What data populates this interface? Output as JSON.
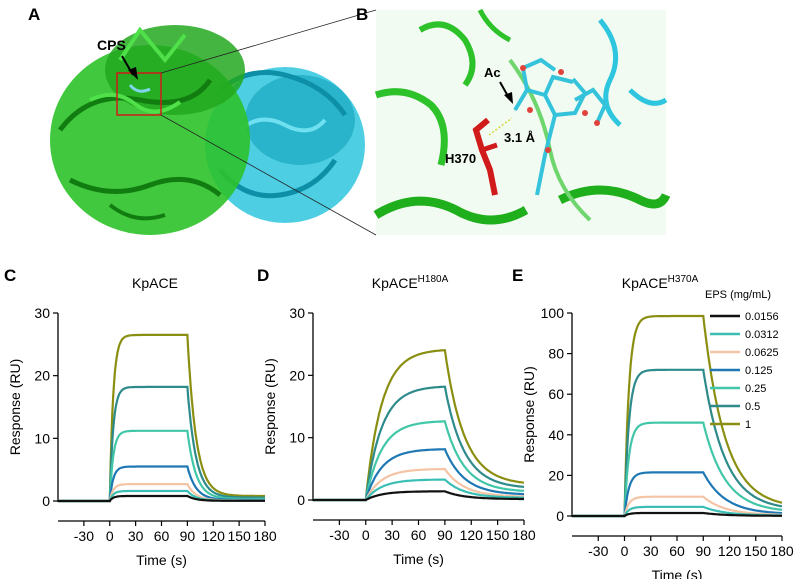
{
  "panels": {
    "A": {
      "label": "A",
      "annotation": "CPS"
    },
    "B": {
      "label": "B",
      "annotations": {
        "ac": "Ac",
        "distance": "3.1 Å",
        "residue": "H370"
      }
    }
  },
  "legend": {
    "title": "EPS (mg/mL)",
    "entries": [
      {
        "label": "0.0156",
        "color": "#111111"
      },
      {
        "label": "0.0312",
        "color": "#3bbfb5"
      },
      {
        "label": "0.0625",
        "color": "#f4c4a4"
      },
      {
        "label": "0.125",
        "color": "#1f78b4"
      },
      {
        "label": "0.25",
        "color": "#41c6a8"
      },
      {
        "label": "0.5",
        "color": "#2e8b8b"
      },
      {
        "label": "1",
        "color": "#8a8f12"
      }
    ]
  },
  "chart_data": [
    {
      "panel_label": "C",
      "type": "line",
      "title": "KpACE",
      "title_sup": "",
      "xlabel": "Time (s)",
      "ylabel": "Response (RU)",
      "xlim": [
        -60,
        180
      ],
      "ylim": [
        0,
        30
      ],
      "xticks": [
        -30,
        0,
        30,
        60,
        90,
        120,
        150,
        180
      ],
      "yticks": [
        0,
        10,
        20,
        30
      ],
      "inj_start": 0,
      "inj_end": 90,
      "tau_on": 4,
      "tau_off": 10,
      "dissoc_residual": 0.03,
      "series": [
        {
          "name": "0.0156",
          "plateau": 0.8
        },
        {
          "name": "0.0312",
          "plateau": 1.6
        },
        {
          "name": "0.0625",
          "plateau": 2.7
        },
        {
          "name": "0.125",
          "plateau": 5.5
        },
        {
          "name": "0.25",
          "plateau": 11.2
        },
        {
          "name": "0.5",
          "plateau": 18.2
        },
        {
          "name": "1",
          "plateau": 26.5
        }
      ]
    },
    {
      "panel_label": "D",
      "type": "line",
      "title": "KpACE",
      "title_sup": "H180A",
      "xlabel": "Time (s)",
      "ylabel": "Response (RU)",
      "xlim": [
        -60,
        180
      ],
      "ylim": [
        0,
        30
      ],
      "xticks": [
        -30,
        0,
        30,
        60,
        90,
        120,
        150,
        180
      ],
      "yticks": [
        0,
        10,
        20,
        30
      ],
      "inj_start": 0,
      "inj_end": 90,
      "tau_on": 18,
      "tau_off": 22,
      "dissoc_residual": 0.1,
      "series": [
        {
          "name": "0.0156",
          "plateau": 1.4
        },
        {
          "name": "0.0312",
          "plateau": 3.3
        },
        {
          "name": "0.0625",
          "plateau": 5.0
        },
        {
          "name": "0.125",
          "plateau": 8.2
        },
        {
          "name": "0.25",
          "plateau": 12.7
        },
        {
          "name": "0.5",
          "plateau": 18.3
        },
        {
          "name": "1",
          "plateau": 24.2
        }
      ]
    },
    {
      "panel_label": "E",
      "type": "line",
      "title": "KpACE",
      "title_sup": "H370A",
      "xlabel": "Time (s)",
      "ylabel": "Response (RU)",
      "xlim": [
        -60,
        180
      ],
      "ylim": [
        0,
        100
      ],
      "xticks": [
        -30,
        0,
        30,
        60,
        90,
        120,
        150,
        180
      ],
      "yticks": [
        0,
        20,
        40,
        60,
        80,
        100
      ],
      "inj_start": 0,
      "inj_end": 90,
      "tau_on": 5,
      "tau_off": 25,
      "dissoc_residual": 0.04,
      "series": [
        {
          "name": "0.0156",
          "plateau": 1.5
        },
        {
          "name": "0.0312",
          "plateau": 4.5
        },
        {
          "name": "0.0625",
          "plateau": 9.5
        },
        {
          "name": "0.125",
          "plateau": 21.5
        },
        {
          "name": "0.25",
          "plateau": 46.0
        },
        {
          "name": "0.5",
          "plateau": 72.0
        },
        {
          "name": "1",
          "plateau": 98.5
        }
      ]
    }
  ]
}
